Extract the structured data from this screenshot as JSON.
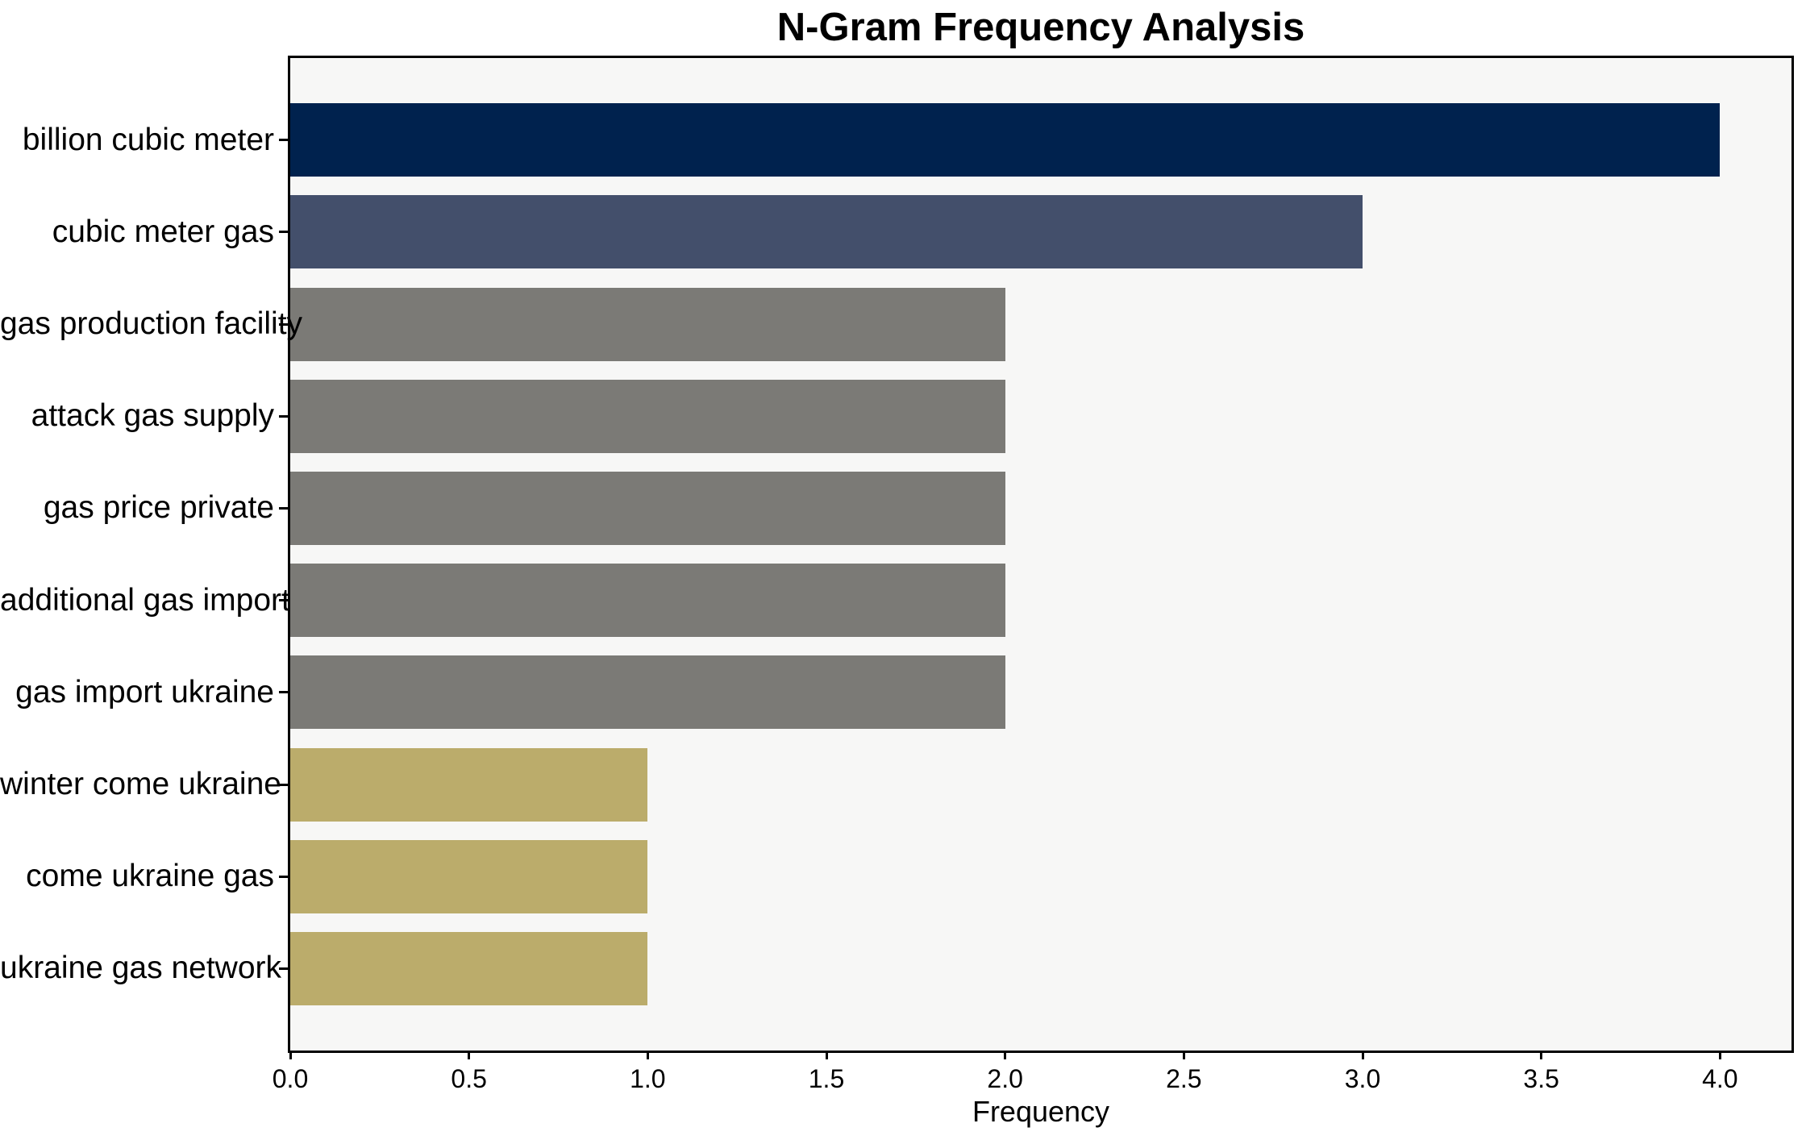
{
  "chart_data": {
    "type": "bar",
    "orientation": "horizontal",
    "title": "N-Gram Frequency Analysis",
    "xlabel": "Frequency",
    "ylabel": "",
    "categories": [
      "billion cubic meter",
      "cubic meter gas",
      "gas production facility",
      "attack gas supply",
      "gas price private",
      "additional gas import",
      "gas import ukraine",
      "winter come ukraine",
      "come ukraine gas",
      "ukraine gas network"
    ],
    "values": [
      4,
      3,
      2,
      2,
      2,
      2,
      2,
      1,
      1,
      1
    ],
    "bar_colors": [
      "#00224E",
      "#434F6B",
      "#7B7A76",
      "#7B7A76",
      "#7B7A76",
      "#7B7A76",
      "#7B7A76",
      "#BBAC6B",
      "#BBAC6B",
      "#BBAC6B"
    ],
    "xlim": [
      0,
      4.2
    ],
    "xticks": [
      0.0,
      0.5,
      1.0,
      1.5,
      2.0,
      2.5,
      3.0,
      3.5,
      4.0
    ],
    "xtick_labels": [
      "0.0",
      "0.5",
      "1.0",
      "1.5",
      "2.0",
      "2.5",
      "3.0",
      "3.5",
      "4.0"
    ],
    "grid": false,
    "legend": null,
    "plot_background": "#f7f7f6",
    "figure_background": "#ffffff",
    "axis_color": "#000000"
  }
}
